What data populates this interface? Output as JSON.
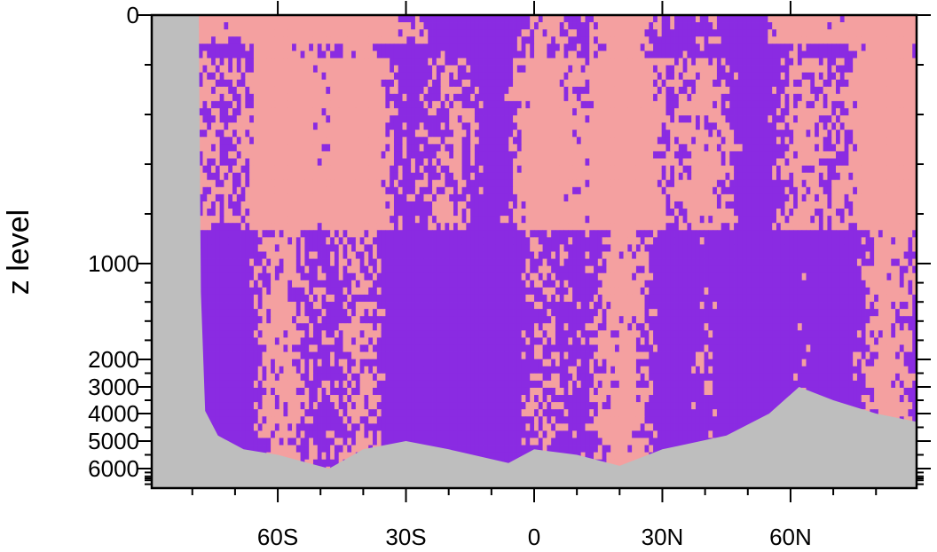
{
  "chart_data": {
    "type": "heatmap",
    "title": "",
    "xlabel": "",
    "ylabel": "z level",
    "x_ticks": [
      {
        "value": -60,
        "label": "60S"
      },
      {
        "value": -30,
        "label": "30S"
      },
      {
        "value": 0,
        "label": "0"
      },
      {
        "value": 30,
        "label": "30N"
      },
      {
        "value": 60,
        "label": "60N"
      }
    ],
    "y_ticks": [
      {
        "value": 0,
        "label": "0"
      },
      {
        "value": 1000,
        "label": "1000"
      },
      {
        "value": 2000,
        "label": "2000"
      },
      {
        "value": 3000,
        "label": "3000"
      },
      {
        "value": 4000,
        "label": "4000"
      },
      {
        "value": 5000,
        "label": "5000"
      },
      {
        "value": 6000,
        "label": "6000"
      }
    ],
    "xlim": [
      -89.5,
      89.5
    ],
    "y_levels": [
      0,
      500,
      1000,
      2000,
      3000,
      4000,
      5000,
      6000,
      7000
    ],
    "legend": "none",
    "colors": {
      "category_a": "#8a2be2",
      "category_b": "#f4a0a0",
      "land": "#bebebe"
    },
    "seafloor_profile": [
      {
        "lat": -89.5,
        "depth": 0
      },
      {
        "lat": -78.5,
        "depth": 0
      },
      {
        "lat": -78.0,
        "depth": 1300
      },
      {
        "lat": -77.0,
        "depth": 3900
      },
      {
        "lat": -74.0,
        "depth": 4800
      },
      {
        "lat": -68.0,
        "depth": 5300
      },
      {
        "lat": -60.0,
        "depth": 5500
      },
      {
        "lat": -48.0,
        "depth": 6000
      },
      {
        "lat": -40.0,
        "depth": 5300
      },
      {
        "lat": -30.0,
        "depth": 5000
      },
      {
        "lat": -20.0,
        "depth": 5300
      },
      {
        "lat": -6.0,
        "depth": 5800
      },
      {
        "lat": 0.0,
        "depth": 5300
      },
      {
        "lat": 10.0,
        "depth": 5500
      },
      {
        "lat": 20.0,
        "depth": 5900
      },
      {
        "lat": 30.0,
        "depth": 5300
      },
      {
        "lat": 45.0,
        "depth": 4800
      },
      {
        "lat": 55.0,
        "depth": 4000
      },
      {
        "lat": 62.0,
        "depth": 3000
      },
      {
        "lat": 70.0,
        "depth": 3500
      },
      {
        "lat": 80.0,
        "depth": 4000
      },
      {
        "lat": 89.5,
        "depth": 4300
      }
    ]
  }
}
